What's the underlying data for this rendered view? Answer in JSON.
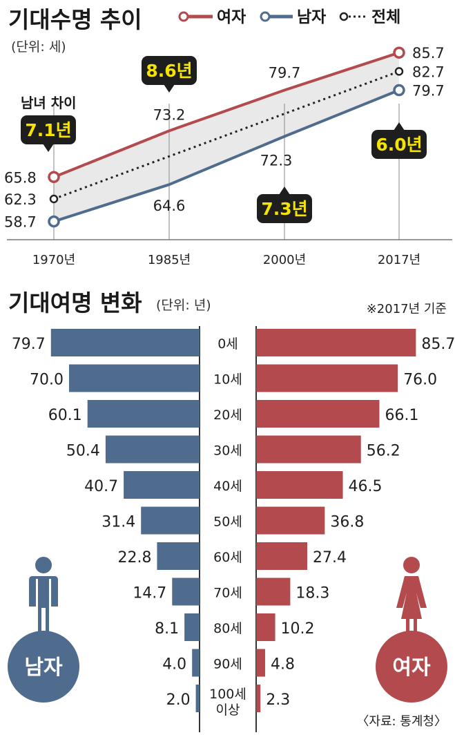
{
  "top_chart": {
    "title": "기대수명 추이",
    "unit": "(단위: 세)",
    "legend": {
      "female": "여자",
      "male": "남자",
      "total": "전체"
    },
    "gender_gap_label": "남녀 차이",
    "colors": {
      "female": "#b24a4e",
      "male": "#4f6b8e",
      "total": "#222222",
      "callout": "#1e1e1e",
      "callout_text": "#f5e400",
      "area": "#e9e9e9"
    }
  },
  "bottom_chart": {
    "title": "기대여명 변화",
    "unit": "(단위: 년)",
    "note": "※2017년 기준",
    "source": "〈자료: 통계청〉",
    "male_label": "남자",
    "female_label": "여자",
    "colors": {
      "male": "#4f6b8e",
      "female": "#b24a4e"
    }
  },
  "chart_data": [
    {
      "type": "line",
      "title": "기대수명 추이",
      "unit": "(단위: 세)",
      "x": [
        "1970년",
        "1985년",
        "2000년",
        "2017년"
      ],
      "series": [
        {
          "name": "여자",
          "values": [
            65.8,
            73.2,
            79.7,
            85.7
          ],
          "labels": [
            "65.8",
            "73.2",
            "79.7",
            "85.7"
          ]
        },
        {
          "name": "전체",
          "values": [
            62.3,
            null,
            null,
            82.7
          ],
          "labels": [
            "62.3",
            "",
            "",
            "82.7"
          ]
        },
        {
          "name": "남자",
          "values": [
            58.7,
            64.6,
            72.3,
            79.7
          ],
          "labels": [
            "58.7",
            "64.6",
            "72.3",
            "79.7"
          ]
        }
      ],
      "annotations": [
        {
          "x": "1970년",
          "text": "7.1년"
        },
        {
          "x": "1985년",
          "text": "8.6년"
        },
        {
          "x": "2000년",
          "text": "7.3년"
        },
        {
          "x": "2017년",
          "text": "6.0년"
        }
      ]
    },
    {
      "type": "bar",
      "title": "기대여명 변화",
      "unit": "(단위: 년)",
      "categories": [
        "0세",
        "10세",
        "20세",
        "30세",
        "40세",
        "50세",
        "60세",
        "70세",
        "80세",
        "90세",
        "100세 이상"
      ],
      "category_lines": [
        [
          "0세"
        ],
        [
          "10세"
        ],
        [
          "20세"
        ],
        [
          "30세"
        ],
        [
          "40세"
        ],
        [
          "50세"
        ],
        [
          "60세"
        ],
        [
          "70세"
        ],
        [
          "80세"
        ],
        [
          "90세"
        ],
        [
          "100세",
          "이상"
        ]
      ],
      "series": [
        {
          "name": "남자",
          "values": [
            79.7,
            70.0,
            60.1,
            50.4,
            40.7,
            31.4,
            22.8,
            14.7,
            8.1,
            4.0,
            2.0
          ],
          "labels": [
            "79.7",
            "70.0",
            "60.1",
            "50.4",
            "40.7",
            "31.4",
            "22.8",
            "14.7",
            "8.1",
            "4.0",
            "2.0"
          ]
        },
        {
          "name": "여자",
          "values": [
            85.7,
            76.0,
            66.1,
            56.2,
            46.5,
            36.8,
            27.4,
            18.3,
            10.2,
            4.8,
            2.3
          ],
          "labels": [
            "85.7",
            "76.0",
            "66.1",
            "56.2",
            "46.5",
            "36.8",
            "27.4",
            "18.3",
            "10.2",
            "4.8",
            "2.3"
          ]
        }
      ]
    }
  ]
}
